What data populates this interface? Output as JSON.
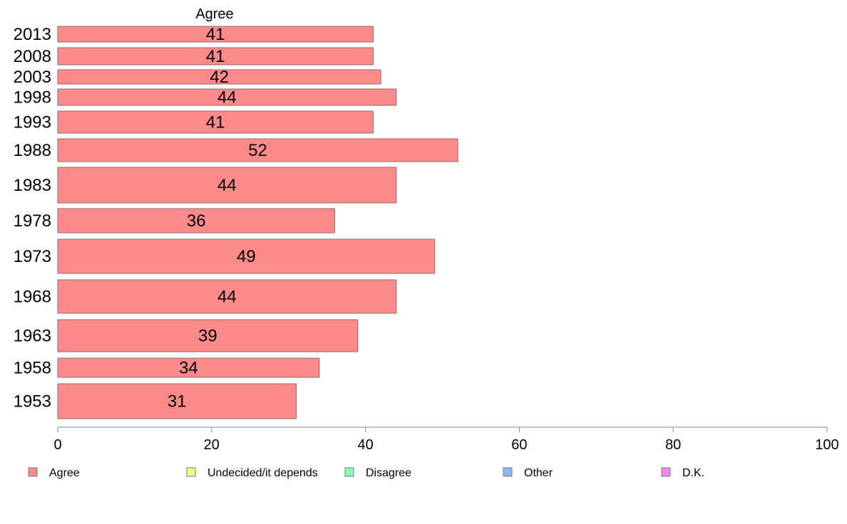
{
  "chart_data": {
    "type": "bar",
    "orientation": "horizontal",
    "column_header": "Agree",
    "categories": [
      "2013",
      "2008",
      "2003",
      "1998",
      "1993",
      "1988",
      "1983",
      "1978",
      "1973",
      "1968",
      "1963",
      "1958",
      "1953"
    ],
    "series": [
      {
        "name": "Agree",
        "color": "#FF8A8A",
        "values": [
          41,
          41,
          42,
          44,
          41,
          52,
          44,
          36,
          49,
          44,
          39,
          34,
          31
        ]
      }
    ],
    "xlim": [
      0,
      100
    ],
    "xticks": [
      0,
      20,
      40,
      60,
      80,
      100
    ],
    "grid": false,
    "legend_position": "bottom",
    "legend": [
      {
        "label": "Agree",
        "color": "#FF8A8A"
      },
      {
        "label": "Undecided/it depends",
        "color": "#F0FF8A"
      },
      {
        "label": "Disagree",
        "color": "#8AFFB8"
      },
      {
        "label": "Other",
        "color": "#8AB8FF"
      },
      {
        "label": "D.K.",
        "color": "#F08AF0"
      }
    ]
  }
}
